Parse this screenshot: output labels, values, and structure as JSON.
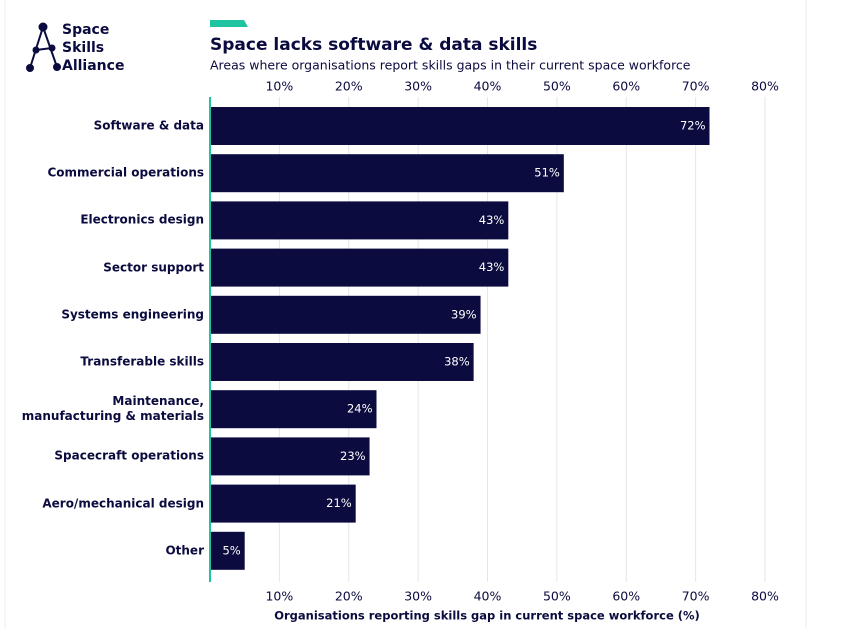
{
  "logo": {
    "lines": [
      "Space",
      "Skills",
      "Alliance"
    ]
  },
  "chart_data": {
    "type": "bar",
    "orientation": "horizontal",
    "title": "Space lacks software & data skills",
    "subtitle": "Areas where organisations report skills gaps in their current space workforce",
    "x_label": "Organisations reporting skills gap in current space workforce (%)",
    "categories": [
      "Software & data",
      "Commercial operations",
      "Electronics design",
      "Sector support",
      "Systems engineering",
      "Transferable skills",
      "Maintenance, manufacturing & materials",
      "Spacecraft operations",
      "Aero/mechanical design",
      "Other"
    ],
    "values": [
      72,
      51,
      43,
      43,
      39,
      38,
      24,
      23,
      21,
      5
    ],
    "value_labels": [
      "72%",
      "51%",
      "43%",
      "43%",
      "39%",
      "38%",
      "24%",
      "23%",
      "21%",
      "5%"
    ],
    "color": "#0b0b3f",
    "accent_color": "#1fc3a0",
    "xlim": [
      0,
      80
    ],
    "xticks": [
      {
        "value": 10,
        "label": "10%"
      },
      {
        "value": 20,
        "label": "20%"
      },
      {
        "value": 30,
        "label": "30%"
      },
      {
        "value": 40,
        "label": "40%"
      },
      {
        "value": 50,
        "label": "50%"
      },
      {
        "value": 60,
        "label": "60%"
      },
      {
        "value": 70,
        "label": "70%"
      },
      {
        "value": 80,
        "label": "80%"
      }
    ],
    "grid": true
  }
}
